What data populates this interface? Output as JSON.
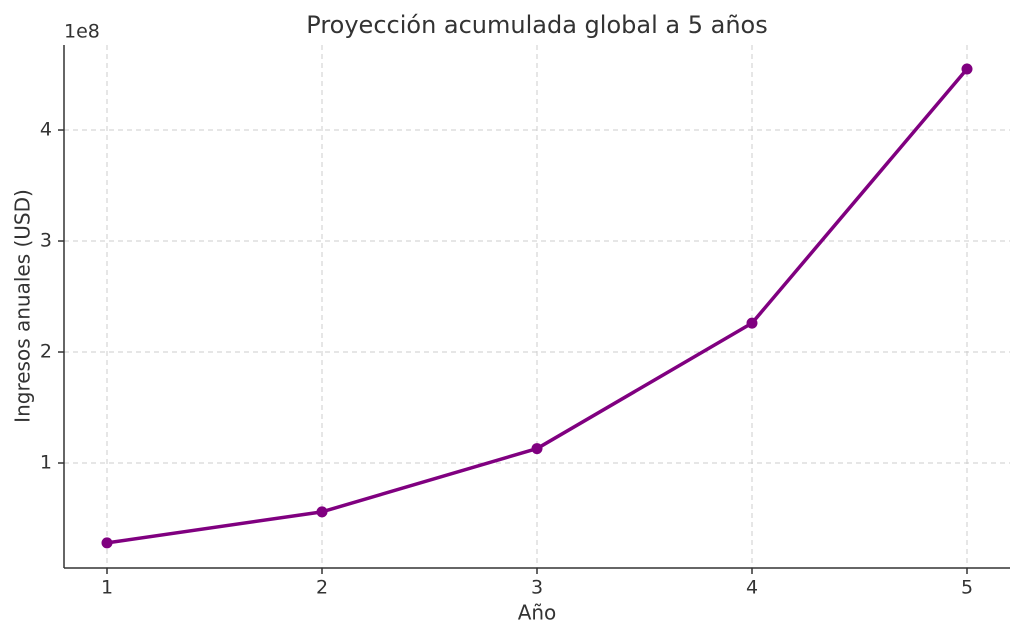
{
  "chart_data": {
    "type": "line",
    "title": "Proyección acumulada global a 5 años",
    "x_label": "Año",
    "y_label": "Ingresos anuales (USD)",
    "y_offset_label": "1e8",
    "x": [
      1,
      2,
      3,
      4,
      5
    ],
    "series": [
      {
        "name": "Ingresos",
        "color": "#800080",
        "values": [
          28000000,
          56000000,
          113000000,
          226000000,
          455000000
        ]
      }
    ],
    "xlim": [
      0.8,
      5.2
    ],
    "xticks": [
      1,
      2,
      3,
      4,
      5
    ],
    "ylim": [
      5400000,
      476600000
    ],
    "yticks": [
      {
        "value": 100000000,
        "label": "1"
      },
      {
        "value": 200000000,
        "label": "2"
      },
      {
        "value": 300000000,
        "label": "3"
      },
      {
        "value": 400000000,
        "label": "4"
      }
    ],
    "grid": true
  }
}
